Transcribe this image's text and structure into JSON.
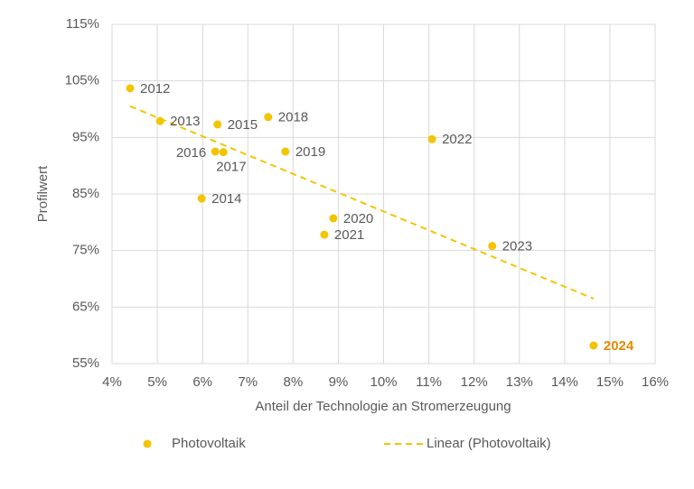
{
  "chart_data": {
    "type": "scatter",
    "x_label": "Anteil der Technologie an Stromerzeugung",
    "y_label": "Profilwert",
    "xlim": [
      4,
      16
    ],
    "ylim": [
      55,
      115
    ],
    "xticks": [
      {
        "value": 4,
        "label": "4%"
      },
      {
        "value": 5,
        "label": "5%"
      },
      {
        "value": 6,
        "label": "6%"
      },
      {
        "value": 7,
        "label": "7%"
      },
      {
        "value": 8,
        "label": "8%"
      },
      {
        "value": 9,
        "label": "9%"
      },
      {
        "value": 10,
        "label": "10%"
      },
      {
        "value": 11,
        "label": "11%"
      },
      {
        "value": 12,
        "label": "12%"
      },
      {
        "value": 13,
        "label": "13%"
      },
      {
        "value": 14,
        "label": "14%"
      },
      {
        "value": 15,
        "label": "15%"
      },
      {
        "value": 16,
        "label": "16%"
      }
    ],
    "yticks": [
      {
        "value": 55,
        "label": "55%"
      },
      {
        "value": 65,
        "label": "65%"
      },
      {
        "value": 75,
        "label": "75%"
      },
      {
        "value": 85,
        "label": "85%"
      },
      {
        "value": 95,
        "label": "95%"
      },
      {
        "value": 105,
        "label": "105%"
      },
      {
        "value": 115,
        "label": "115%"
      }
    ],
    "grid": true,
    "series": [
      {
        "name": "Photovoltaik",
        "color": "#f2c500",
        "x": [
          4.4,
          5.06,
          5.98,
          6.33,
          6.28,
          6.46,
          7.45,
          7.83,
          8.89,
          8.69,
          11.07,
          12.4,
          14.64
        ],
        "values": [
          103.7,
          97.9,
          84.2,
          97.3,
          92.5,
          92.4,
          98.6,
          92.5,
          80.7,
          77.8,
          94.7,
          75.8,
          58.2
        ],
        "labels": [
          "2012",
          "2013",
          "2014",
          "2015",
          "2016",
          "2017",
          "2018",
          "2019",
          "2020",
          "2021",
          "2022",
          "2023",
          "2024"
        ],
        "highlight": {
          "index": 12,
          "color": "#e58a00"
        }
      }
    ],
    "trendline": {
      "name": "Linear (Photovoltaik)",
      "fit": "linear",
      "color": "#f2c500",
      "dashed": true
    },
    "legend": "bottom"
  }
}
